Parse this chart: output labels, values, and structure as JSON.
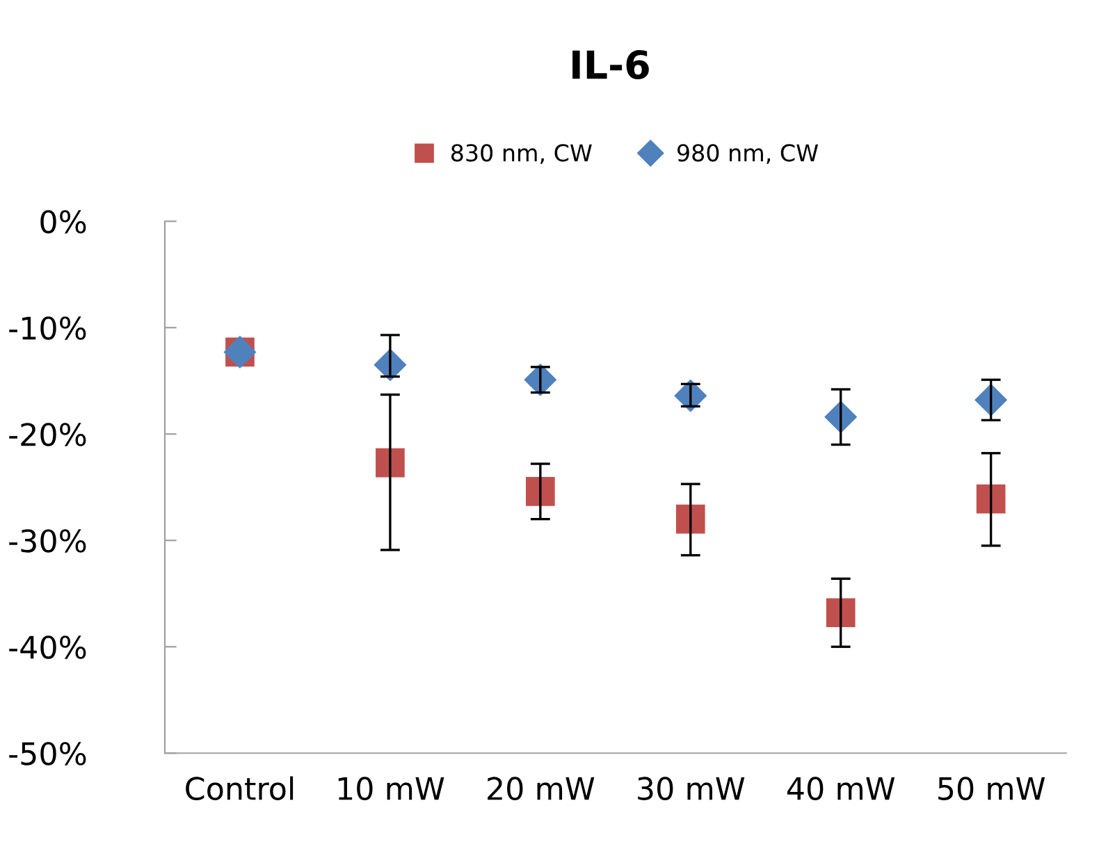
{
  "chart_data": {
    "type": "scatter",
    "title": "IL-6",
    "categories": [
      "Control",
      "10 mW",
      "20 mW",
      "30 mW",
      "40 mW",
      "50 mW"
    ],
    "series": [
      {
        "name": "830 nm, CW",
        "color": "#c0504d",
        "marker": "square",
        "values": [
          -12.3,
          -22.7,
          -25.4,
          -28.0,
          -36.8,
          -26.1
        ],
        "errors": [
          null,
          [
            -30.9,
            -16.3
          ],
          [
            -28.0,
            -22.8
          ],
          [
            -31.4,
            -24.7
          ],
          [
            -40.0,
            -33.6
          ],
          [
            -30.5,
            -21.8
          ]
        ]
      },
      {
        "name": "980 nm, CW",
        "color": "#4f81bd",
        "marker": "diamond",
        "values": [
          -12.3,
          -13.5,
          -14.9,
          -16.4,
          -18.4,
          -16.8
        ],
        "errors": [
          null,
          [
            -14.6,
            -10.7
          ],
          [
            -16.1,
            -13.7
          ],
          [
            -17.4,
            -15.3
          ],
          [
            -21.0,
            -15.8
          ],
          [
            -18.7,
            -14.9
          ]
        ]
      }
    ],
    "ylim": [
      -50,
      0
    ],
    "yticks": [
      {
        "value": 0,
        "label": "0%"
      },
      {
        "value": -10,
        "label": "-10%"
      },
      {
        "value": -20,
        "label": "-20%"
      },
      {
        "value": -30,
        "label": "-30%"
      },
      {
        "value": -40,
        "label": "-40%"
      },
      {
        "value": -50,
        "label": "-50%"
      }
    ],
    "legend": "top",
    "grid": false
  }
}
